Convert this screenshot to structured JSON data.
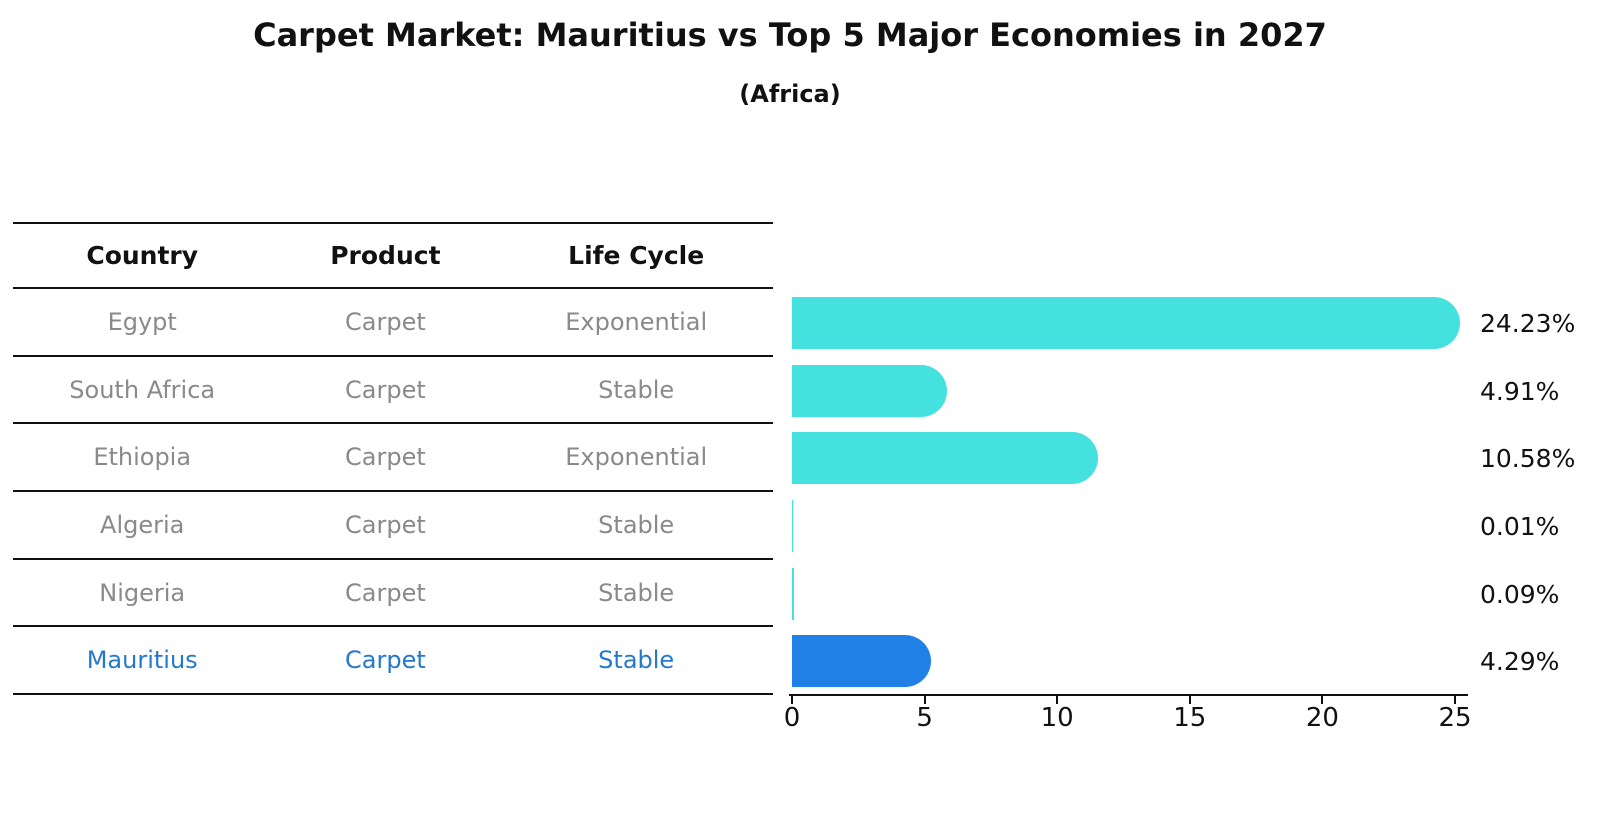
{
  "header": {
    "title": "Carpet Market: Mauritius vs Top 5 Major Economies in 2027",
    "subtitle": "(Africa)"
  },
  "colors": {
    "bar_default": "#45e1de",
    "bar_highlight": "#2080e6",
    "highlight_text": "#2479cf",
    "row_text": "#8a8a8a",
    "header_text": "#111111",
    "axis": "#111111"
  },
  "table": {
    "headers": [
      "Country",
      "Product",
      "Life Cycle"
    ],
    "rows": [
      {
        "country": "Egypt",
        "product": "Carpet",
        "life_cycle": "Exponential",
        "highlight": false
      },
      {
        "country": "South Africa",
        "product": "Carpet",
        "life_cycle": "Stable",
        "highlight": false
      },
      {
        "country": "Ethiopia",
        "product": "Carpet",
        "life_cycle": "Exponential",
        "highlight": false
      },
      {
        "country": "Algeria",
        "product": "Carpet",
        "life_cycle": "Stable",
        "highlight": false
      },
      {
        "country": "Nigeria",
        "product": "Carpet",
        "life_cycle": "Stable",
        "highlight": false
      },
      {
        "country": "Mauritius",
        "product": "Carpet",
        "life_cycle": "Stable",
        "highlight": true
      }
    ]
  },
  "chart_data": {
    "type": "bar",
    "orientation": "horizontal",
    "title": "Carpet Market: Mauritius vs Top 5 Major Economies in 2027",
    "subtitle": "(Africa)",
    "categories": [
      "Egypt",
      "South Africa",
      "Ethiopia",
      "Algeria",
      "Nigeria",
      "Mauritius"
    ],
    "values": [
      24.23,
      4.91,
      10.58,
      0.01,
      0.09,
      4.29
    ],
    "value_labels": [
      "24.23%",
      "4.91%",
      "10.58%",
      "0.01%",
      "0.09%",
      "4.29%"
    ],
    "unit": "%",
    "xlim": [
      0,
      25
    ],
    "x_ticks": [
      0,
      5,
      10,
      15,
      20,
      25
    ],
    "x_tick_labels": [
      "0",
      "5",
      "10",
      "15",
      "20",
      "25"
    ],
    "highlight_category": "Mauritius",
    "grid": false,
    "legend": false
  }
}
